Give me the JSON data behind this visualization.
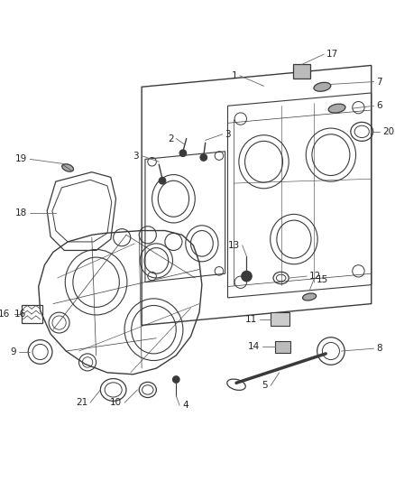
{
  "bg_color": "#ffffff",
  "line_color": "#3a3a3a",
  "label_color": "#222222",
  "fig_width": 4.38,
  "fig_height": 5.33,
  "dpi": 100
}
